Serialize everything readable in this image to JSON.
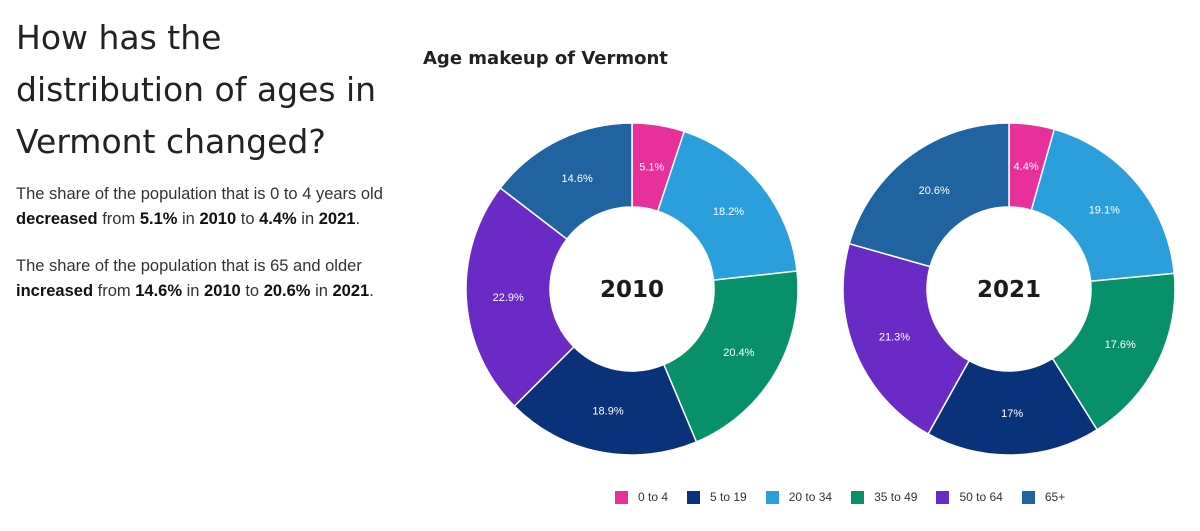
{
  "headline": "How has the distribution of ages in Vermont changed?",
  "paragraphs": [
    {
      "t1": "The share of the population that is 0 to 4 years old ",
      "b1": "decreased",
      "t2": " from ",
      "b2": "5.1%",
      "t3": " in ",
      "b3": "2010",
      "t4": " to ",
      "b4": "4.4%",
      "t5": " in ",
      "b5": "2021",
      "t6": "."
    },
    {
      "t1": "The share of the population that is 65 and older ",
      "b1": "increased",
      "t2": " from ",
      "b2": "14.6%",
      "t3": " in ",
      "b3": "2010",
      "t4": " to ",
      "b4": "20.6%",
      "t5": " in ",
      "b5": "2021",
      "t6": "."
    }
  ],
  "chart_title": "Age makeup of Vermont",
  "colors": {
    "0 to 4": "#e8309a",
    "5 to 19": "#0a327a",
    "20 to 34": "#2a9fdc",
    "35 to 49": "#079069",
    "50 to 64": "#6a2ac6",
    "65+": "#1f63a0"
  },
  "chart_data": [
    {
      "type": "pie",
      "title": "2010",
      "categories": [
        "0 to 4",
        "20 to 34",
        "35 to 49",
        "5 to 19",
        "50 to 64",
        "65+"
      ],
      "values": [
        5.1,
        18.2,
        20.4,
        18.9,
        22.9,
        14.6
      ],
      "labels": [
        "5.1%",
        "18.2%",
        "20.4%",
        "18.9%",
        "22.9%",
        "14.6%"
      ],
      "donut": true
    },
    {
      "type": "pie",
      "title": "2021",
      "categories": [
        "0 to 4",
        "20 to 34",
        "35 to 49",
        "5 to 19",
        "50 to 64",
        "65+"
      ],
      "values": [
        4.4,
        19.1,
        17.6,
        17,
        21.3,
        20.6
      ],
      "labels": [
        "4.4%",
        "19.1%",
        "17.6%",
        "17%",
        "21.3%",
        "20.6%"
      ],
      "donut": true
    }
  ],
  "legend": [
    "0 to 4",
    "5 to 19",
    "20 to 34",
    "35 to 49",
    "50 to 64",
    "65+"
  ]
}
